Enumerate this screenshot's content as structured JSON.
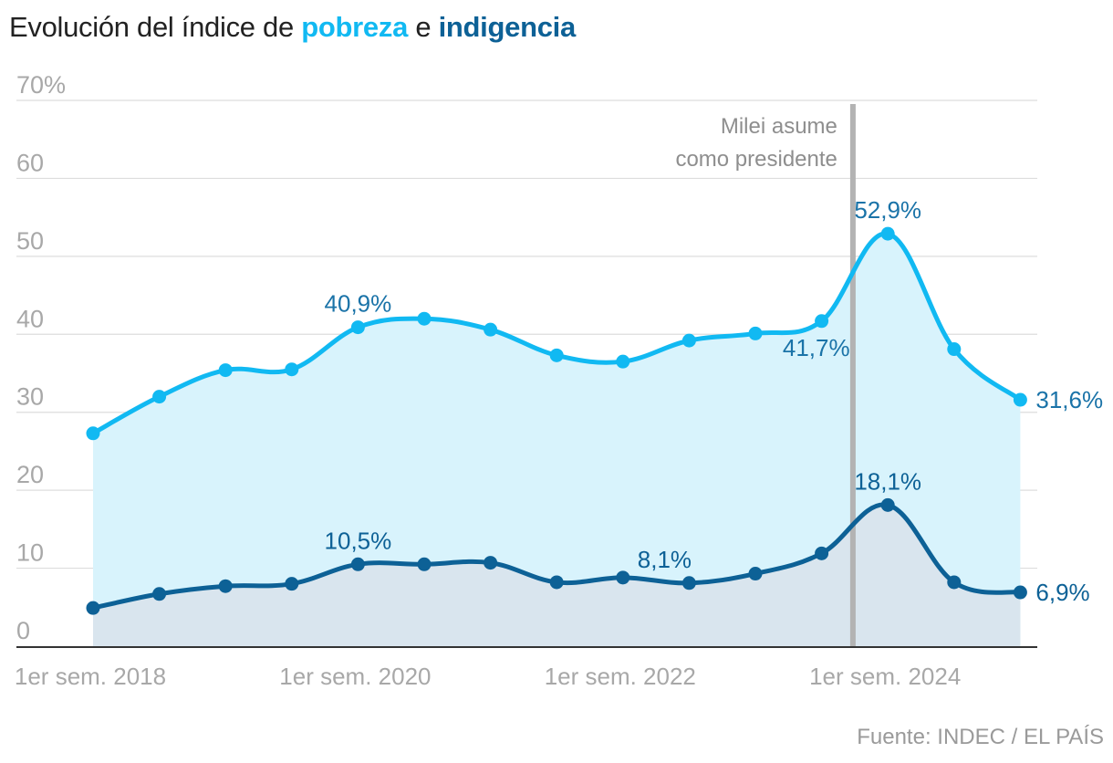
{
  "title": {
    "prefix": "Evolución del índice de ",
    "series1": "pobreza",
    "mid": " e ",
    "series2": "indigencia"
  },
  "source": "Fuente: INDEC / EL PAÍS",
  "colors": {
    "pobreza": "#11b9f2",
    "indigencia": "#0d6196",
    "pobreza_fill": "#d8f3fc",
    "indigencia_fill": "#d9e5ee",
    "label_blue": "#1a73a8",
    "grid": "#dddddd",
    "axis_text": "#a8a8a8",
    "marker_line": "#b3b3b3"
  },
  "chart_data": {
    "type": "line",
    "y_unit": "%",
    "ylim": [
      0,
      70
    ],
    "y_ticks": [
      "70%",
      "60",
      "50",
      "40",
      "30",
      "20",
      "10",
      "0"
    ],
    "x_ticks": [
      "1er sem. 2018",
      "1er sem. 2020",
      "1er sem. 2022",
      "1er sem. 2024"
    ],
    "x": [
      "1er sem. 2018",
      "2do sem. 2018",
      "1er sem. 2019",
      "2do sem. 2019",
      "1er sem. 2020",
      "2do sem. 2020",
      "1er sem. 2021",
      "2do sem. 2021",
      "1er sem. 2022",
      "2do sem. 2022",
      "1er sem. 2023",
      "2do sem. 2023",
      "1er sem. 2024",
      "2do sem. 2024",
      "1er sem. 2025"
    ],
    "series": [
      {
        "name": "pobreza",
        "values": [
          27.3,
          32.0,
          35.4,
          35.5,
          40.9,
          42.0,
          40.6,
          37.3,
          36.5,
          39.2,
          40.1,
          41.7,
          52.9,
          38.1,
          31.6
        ],
        "labels": [
          {
            "index": 4,
            "text": "40,9%"
          },
          {
            "index": 11,
            "text": "41,7%"
          },
          {
            "index": 12,
            "text": "52,9%"
          },
          {
            "index": 14,
            "text": "31,6%"
          }
        ]
      },
      {
        "name": "indigencia",
        "values": [
          4.9,
          6.7,
          7.7,
          8.0,
          10.5,
          10.5,
          10.7,
          8.2,
          8.8,
          8.1,
          9.3,
          11.9,
          18.1,
          8.2,
          6.9
        ],
        "labels": [
          {
            "index": 4,
            "text": "10,5%"
          },
          {
            "index": 9,
            "text": "8,1%"
          },
          {
            "index": 12,
            "text": "18,1%"
          },
          {
            "index": 14,
            "text": "6,9%"
          }
        ]
      }
    ],
    "annotation": {
      "text_line1": "Milei asume",
      "text_line2": "como presidente",
      "at": "2do sem. 2023 / 1er sem. 2024"
    },
    "grid": true
  }
}
